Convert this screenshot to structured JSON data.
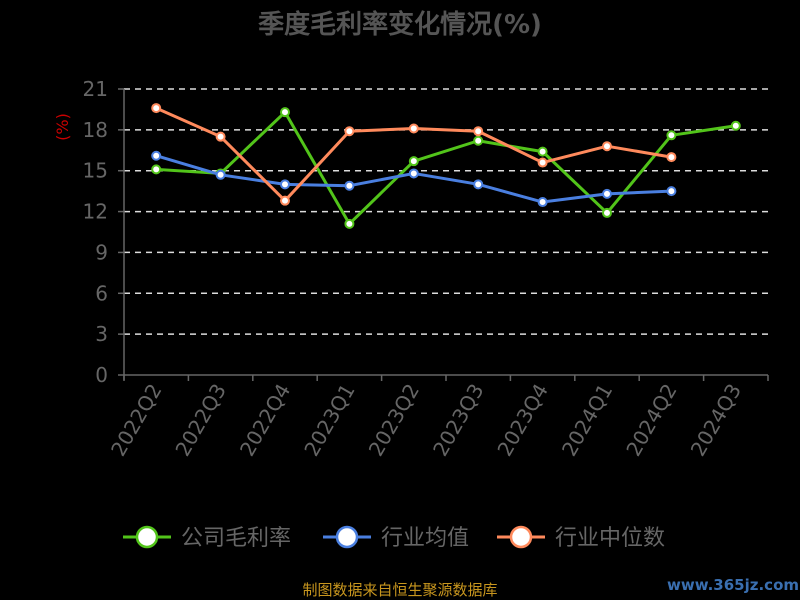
{
  "chart_data": {
    "type": "line",
    "title": "季度毛利率变化情况(%)",
    "ylabel": "(%)",
    "categories": [
      "2022Q2",
      "2022Q3",
      "2022Q4",
      "2023Q1",
      "2023Q2",
      "2023Q3",
      "2023Q4",
      "2024Q1",
      "2024Q2",
      "2024Q3"
    ],
    "yticks": [
      "0",
      "3",
      "6",
      "9",
      "12",
      "15",
      "18",
      "21"
    ],
    "ylim": [
      0,
      21
    ],
    "grid": true,
    "legend_position": "bottom",
    "series": [
      {
        "name": "公司毛利率",
        "color": "#52c41a",
        "values": [
          15.1,
          14.8,
          19.3,
          11.1,
          15.7,
          17.2,
          16.4,
          11.9,
          17.6,
          18.3
        ]
      },
      {
        "name": "行业均值",
        "color": "#4a7fe0",
        "values": [
          16.1,
          14.7,
          14.0,
          13.9,
          14.8,
          14.0,
          12.7,
          13.3,
          13.5,
          null
        ]
      },
      {
        "name": "行业中位数",
        "color": "#ff8a5c",
        "values": [
          19.6,
          17.5,
          12.8,
          17.9,
          18.1,
          17.9,
          15.6,
          16.8,
          16.0,
          null
        ]
      }
    ]
  },
  "footer": {
    "source": "制图数据来自恒生聚源数据库",
    "watermark": "www.365jz.com"
  }
}
